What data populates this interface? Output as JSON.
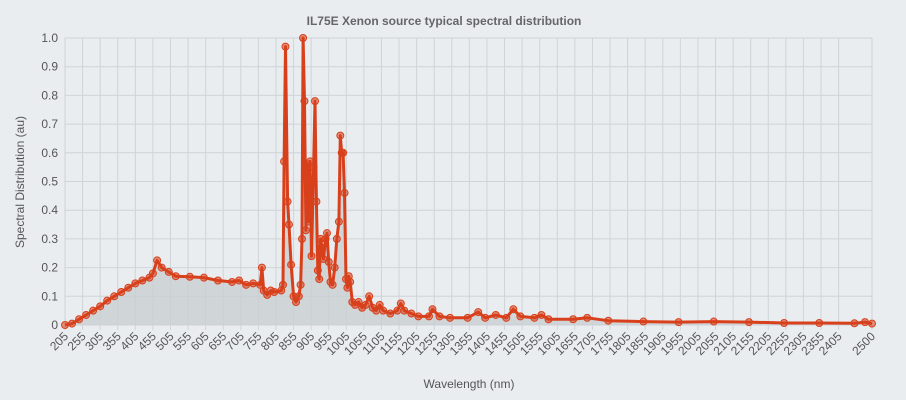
{
  "chart_data": {
    "type": "line",
    "title": "IL75E Xenon source typical spectral distribution",
    "xlabel": "Wavelength (nm)",
    "ylabel": "Spectral Distribution (au)",
    "x": [
      205,
      225,
      245,
      265,
      285,
      305,
      325,
      345,
      365,
      385,
      405,
      425,
      445,
      455,
      467,
      480,
      500,
      520,
      560,
      600,
      640,
      680,
      700,
      720,
      740,
      760,
      765,
      770,
      780,
      790,
      800,
      820,
      825,
      828,
      832,
      838,
      842,
      848,
      855,
      862,
      870,
      875,
      879,
      882,
      886,
      890,
      894,
      898,
      902,
      906,
      912,
      916,
      920,
      924,
      928,
      932,
      936,
      940,
      946,
      950,
      955,
      960,
      966,
      972,
      978,
      984,
      988,
      992,
      996,
      1000,
      1004,
      1008,
      1012,
      1016,
      1022,
      1030,
      1040,
      1050,
      1060,
      1070,
      1080,
      1090,
      1100,
      1110,
      1130,
      1150,
      1160,
      1170,
      1190,
      1210,
      1240,
      1250,
      1270,
      1300,
      1350,
      1380,
      1400,
      1430,
      1460,
      1480,
      1500,
      1540,
      1560,
      1580,
      1650,
      1690,
      1750,
      1850,
      1950,
      2050,
      2150,
      2250,
      2350,
      2450,
      2480,
      2500
    ],
    "series": [
      {
        "name": "Spectral Distribution",
        "color": "#d8401c",
        "values": [
          0.0,
          0.005,
          0.02,
          0.035,
          0.05,
          0.065,
          0.085,
          0.1,
          0.115,
          0.13,
          0.145,
          0.155,
          0.165,
          0.18,
          0.225,
          0.2,
          0.185,
          0.17,
          0.168,
          0.165,
          0.155,
          0.15,
          0.155,
          0.14,
          0.145,
          0.14,
          0.2,
          0.12,
          0.105,
          0.12,
          0.115,
          0.12,
          0.14,
          0.57,
          0.97,
          0.43,
          0.35,
          0.21,
          0.1,
          0.08,
          0.1,
          0.14,
          0.3,
          1.0,
          0.78,
          0.33,
          0.56,
          0.36,
          0.57,
          0.24,
          0.55,
          0.78,
          0.43,
          0.19,
          0.16,
          0.3,
          0.27,
          0.23,
          0.3,
          0.32,
          0.22,
          0.15,
          0.14,
          0.2,
          0.3,
          0.36,
          0.66,
          0.6,
          0.6,
          0.46,
          0.16,
          0.13,
          0.17,
          0.15,
          0.08,
          0.07,
          0.08,
          0.06,
          0.07,
          0.1,
          0.06,
          0.05,
          0.07,
          0.05,
          0.04,
          0.05,
          0.075,
          0.05,
          0.04,
          0.03,
          0.03,
          0.055,
          0.03,
          0.025,
          0.025,
          0.045,
          0.025,
          0.035,
          0.025,
          0.055,
          0.03,
          0.025,
          0.035,
          0.02,
          0.02,
          0.025,
          0.015,
          0.012,
          0.01,
          0.012,
          0.01,
          0.007,
          0.007,
          0.006,
          0.01,
          0.005
        ]
      }
    ],
    "xlim": [
      205,
      2500
    ],
    "xticks": [
      205,
      255,
      305,
      355,
      405,
      455,
      505,
      555,
      605,
      655,
      705,
      755,
      805,
      855,
      905,
      955,
      1005,
      1055,
      1105,
      1155,
      1205,
      1255,
      1305,
      1355,
      1405,
      1455,
      1505,
      1555,
      1605,
      1655,
      1705,
      1755,
      1805,
      1855,
      1905,
      1955,
      2005,
      2055,
      2105,
      2155,
      2205,
      2255,
      2305,
      2355,
      2405,
      2500
    ],
    "ylim": [
      0,
      1
    ],
    "yticks": [
      0,
      0.1,
      0.2,
      0.3,
      0.4,
      0.5,
      0.6,
      0.7,
      0.8,
      0.9,
      {
        "value": 1,
        "label": "1.0"
      }
    ],
    "grid": true,
    "fill": true,
    "fill_color": "#c9ced2"
  }
}
